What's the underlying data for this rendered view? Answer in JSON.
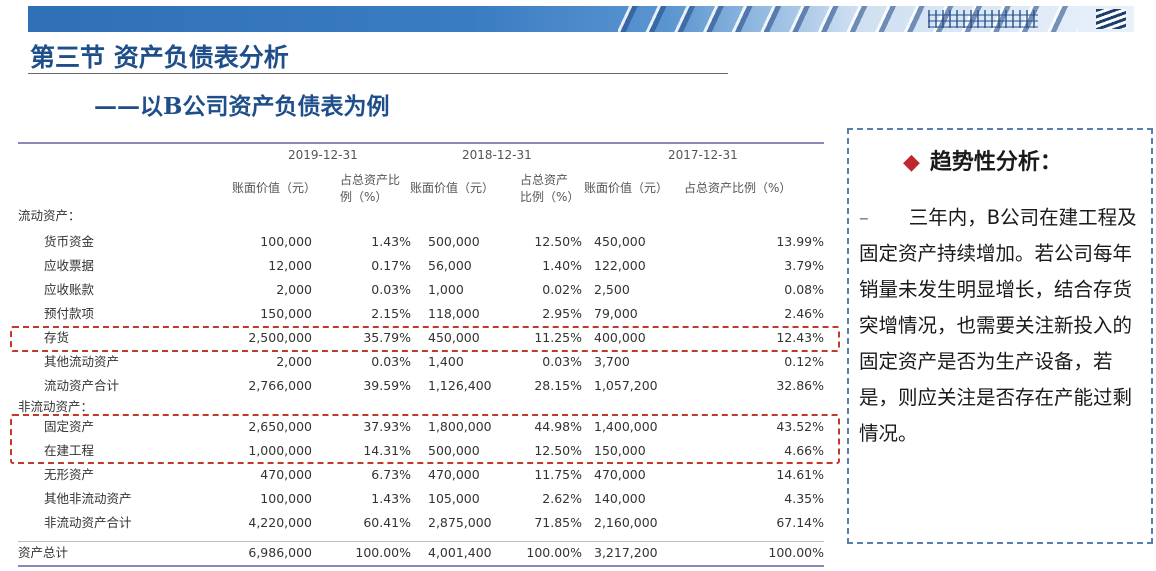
{
  "header": {
    "title": "第三节 资产负债表分析",
    "subtitle": "——以B公司资产负债表为例"
  },
  "table": {
    "years": [
      "2019-12-31",
      "2018-12-31",
      "2017-12-31"
    ],
    "col_heads": {
      "value": "账面价值（元）",
      "pct_2019_line1": "占总资产比",
      "pct_2019_line2": "例（%）",
      "pct_2018_line1": "占总资产",
      "pct_2018_line2": "比例（%）",
      "pct_2017": "占总资产比例（%）"
    },
    "rows": [
      {
        "label": "流动资产：",
        "section": true
      },
      {
        "label": "货币资金",
        "v1": "100,000",
        "p1": "1.43%",
        "v2": "500,000",
        "p2": "12.50%",
        "v3": "450,000",
        "p3": "13.99%"
      },
      {
        "label": "应收票据",
        "v1": "12,000",
        "p1": "0.17%",
        "v2": "56,000",
        "p2": "1.40%",
        "v3": "122,000",
        "p3": "3.79%"
      },
      {
        "label": "应收账款",
        "v1": "2,000",
        "p1": "0.03%",
        "v2": "1,000",
        "p2": "0.02%",
        "v3": "2,500",
        "p3": "0.08%"
      },
      {
        "label": "预付款项",
        "v1": "150,000",
        "p1": "2.15%",
        "v2": "118,000",
        "p2": "2.95%",
        "v3": "79,000",
        "p3": "2.46%"
      },
      {
        "label": "存货",
        "v1": "2,500,000",
        "p1": "35.79%",
        "v2": "450,000",
        "p2": "11.25%",
        "v3": "400,000",
        "p3": "12.43%"
      },
      {
        "label": "其他流动资产",
        "v1": "2,000",
        "p1": "0.03%",
        "v2": "1,400",
        "p2": "0.03%",
        "v3": "3,700",
        "p3": "0.12%"
      },
      {
        "label": "流动资产合计",
        "v1": "2,766,000",
        "p1": "39.59%",
        "v2": "1,126,400",
        "p2": "28.15%",
        "v3": "1,057,200",
        "p3": "32.86%"
      },
      {
        "label": "非流动资产：",
        "section": true
      },
      {
        "label": "固定资产",
        "v1": "2,650,000",
        "p1": "37.93%",
        "v2": "1,800,000",
        "p2": "44.98%",
        "v3": "1,400,000",
        "p3": "43.52%"
      },
      {
        "label": "在建工程",
        "v1": "1,000,000",
        "p1": "14.31%",
        "v2": "500,000",
        "p2": "12.50%",
        "v3": "150,000",
        "p3": "4.66%"
      },
      {
        "label": "无形资产",
        "v1": "470,000",
        "p1": "6.73%",
        "v2": "470,000",
        "p2": "11.75%",
        "v3": "470,000",
        "p3": "14.61%"
      },
      {
        "label": "其他非流动资产",
        "v1": "100,000",
        "p1": "1.43%",
        "v2": "105,000",
        "p2": "2.62%",
        "v3": "140,000",
        "p3": "4.35%"
      },
      {
        "label": "非流动资产合计",
        "v1": "4,220,000",
        "p1": "60.41%",
        "v2": "2,875,000",
        "p2": "71.85%",
        "v3": "2,160,000",
        "p3": "67.14%"
      },
      {
        "label": "资产总计",
        "section": true,
        "v1": "6,986,000",
        "p1": "100.00%",
        "v2": "4,001,400",
        "p2": "100.00%",
        "v3": "3,217,200",
        "p3": "100.00%"
      }
    ]
  },
  "analysis": {
    "heading": "趋势性分析：",
    "bullet": "–",
    "text": "三年内，B公司在建工程及固定资产持续增加。若公司每年销量未发生明显增长，结合存货突增情况，也需要关注新投入的固定资产是否为生产设备，若是，则应关注是否存在产能过剩情况。"
  },
  "colors": {
    "title": "#1f4f8a",
    "highlight": "#c0392b",
    "panel_border": "#5a7fae",
    "diamond": "#c0262d"
  }
}
